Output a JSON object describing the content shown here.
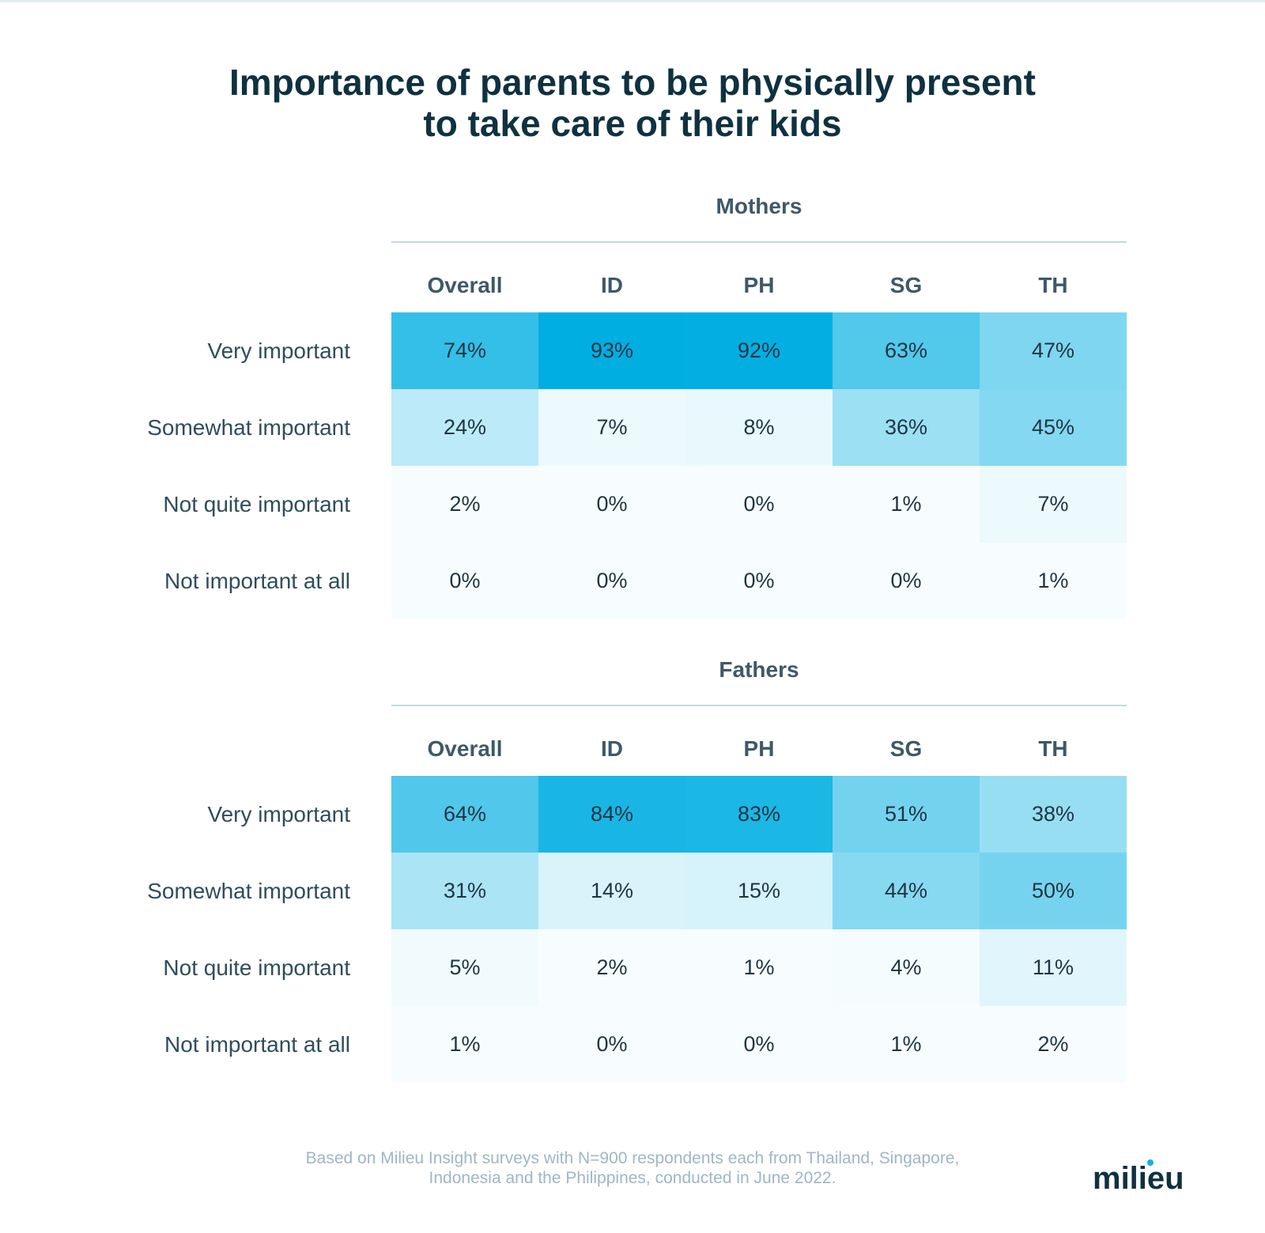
{
  "title_line1": "Importance of parents to be physically present",
  "title_line2": "to take care of their kids",
  "accent_color": "#00aee2",
  "chart_data": [
    {
      "type": "heatmap",
      "title": "Mothers",
      "columns": [
        "Overall",
        "ID",
        "PH",
        "SG",
        "TH"
      ],
      "rows": [
        "Very important",
        "Somewhat important",
        "Not quite important",
        "Not important at all"
      ],
      "values": [
        [
          74,
          93,
          92,
          63,
          47
        ],
        [
          24,
          7,
          8,
          36,
          45
        ],
        [
          2,
          0,
          0,
          1,
          7
        ],
        [
          0,
          0,
          0,
          0,
          1
        ]
      ],
      "unit": "%"
    },
    {
      "type": "heatmap",
      "title": "Fathers",
      "columns": [
        "Overall",
        "ID",
        "PH",
        "SG",
        "TH"
      ],
      "rows": [
        "Very important",
        "Somewhat important",
        "Not quite important",
        "Not important at all"
      ],
      "values": [
        [
          64,
          84,
          83,
          51,
          38
        ],
        [
          31,
          14,
          15,
          44,
          50
        ],
        [
          5,
          2,
          1,
          4,
          11
        ],
        [
          1,
          0,
          0,
          1,
          2
        ]
      ],
      "unit": "%"
    }
  ],
  "footnote_line1": "Based on Milieu Insight surveys with N=900 respondents each from Thailand, Singapore,",
  "footnote_line2": "Indonesia and the Philippines, conducted in June 2022.",
  "logo_text": "milieu"
}
